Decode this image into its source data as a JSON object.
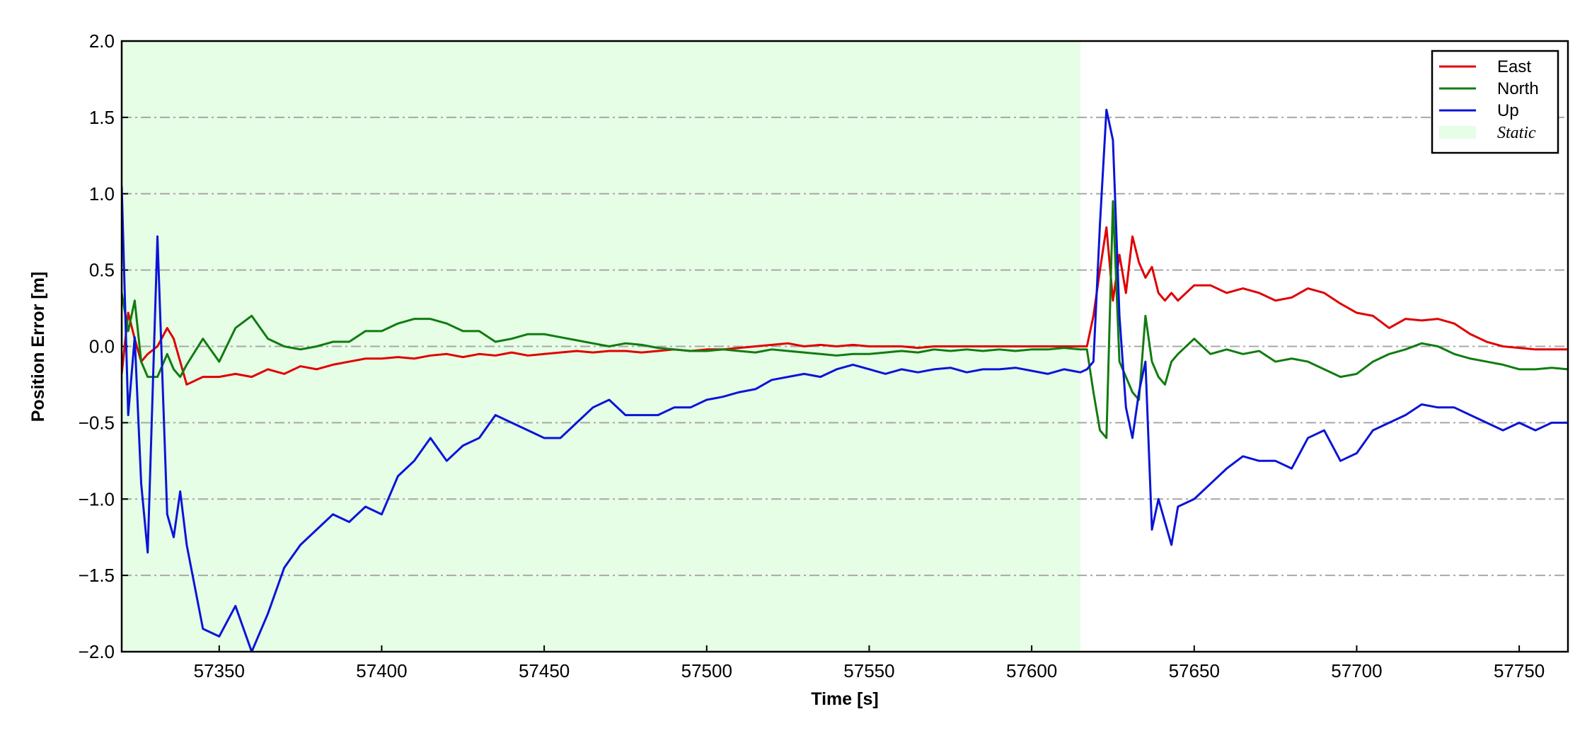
{
  "chart_data": {
    "type": "line",
    "xlabel": "Time [s]",
    "ylabel": "Position Error [m]",
    "xlim": [
      57320,
      57765
    ],
    "ylim": [
      -2.0,
      2.0
    ],
    "xticks": [
      57350,
      57400,
      57450,
      57500,
      57550,
      57600,
      57650,
      57700,
      57750
    ],
    "yticks": [
      {
        "value": -2.0,
        "label": "−2.0"
      },
      {
        "value": -1.5,
        "label": "−1.5"
      },
      {
        "value": -1.0,
        "label": "−1.0"
      },
      {
        "value": -0.5,
        "label": "−0.5"
      },
      {
        "value": 0.0,
        "label": "0.0"
      },
      {
        "value": 0.5,
        "label": "0.5"
      },
      {
        "value": 1.0,
        "label": "1.0"
      },
      {
        "value": 1.5,
        "label": "1.5"
      },
      {
        "value": 2.0,
        "label": "2.0"
      }
    ],
    "grid": true,
    "legend": "upper right",
    "shaded_region": {
      "name": "Static",
      "xrange": [
        57320,
        57615
      ],
      "color": "#e6fde6"
    },
    "x": [
      57320,
      57322,
      57324,
      57326,
      57328,
      57331,
      57334,
      57336,
      57338,
      57340,
      57345,
      57350,
      57355,
      57360,
      57365,
      57370,
      57375,
      57380,
      57385,
      57390,
      57395,
      57400,
      57405,
      57410,
      57415,
      57420,
      57425,
      57430,
      57435,
      57440,
      57445,
      57450,
      57455,
      57460,
      57465,
      57470,
      57475,
      57480,
      57485,
      57490,
      57495,
      57500,
      57505,
      57510,
      57515,
      57520,
      57525,
      57530,
      57535,
      57540,
      57545,
      57550,
      57555,
      57560,
      57565,
      57570,
      57575,
      57580,
      57585,
      57590,
      57595,
      57600,
      57605,
      57610,
      57615,
      57617,
      57619,
      57621,
      57623,
      57625,
      57627,
      57629,
      57631,
      57633,
      57635,
      57637,
      57639,
      57641,
      57643,
      57645,
      57650,
      57655,
      57660,
      57665,
      57670,
      57675,
      57680,
      57685,
      57690,
      57695,
      57700,
      57705,
      57710,
      57715,
      57720,
      57725,
      57730,
      57735,
      57740,
      57745,
      57750,
      57755,
      57760,
      57765
    ],
    "series": [
      {
        "name": "East",
        "color": "#e00000",
        "values": [
          -0.18,
          0.22,
          0.05,
          -0.1,
          -0.05,
          0.0,
          0.12,
          0.05,
          -0.1,
          -0.25,
          -0.2,
          -0.2,
          -0.18,
          -0.2,
          -0.15,
          -0.18,
          -0.13,
          -0.15,
          -0.12,
          -0.1,
          -0.08,
          -0.08,
          -0.07,
          -0.08,
          -0.06,
          -0.05,
          -0.07,
          -0.05,
          -0.06,
          -0.04,
          -0.06,
          -0.05,
          -0.04,
          -0.03,
          -0.04,
          -0.03,
          -0.03,
          -0.04,
          -0.03,
          -0.02,
          -0.03,
          -0.02,
          -0.02,
          -0.01,
          0.0,
          0.01,
          0.02,
          0.0,
          0.01,
          0.0,
          0.01,
          0.0,
          0.0,
          0.0,
          -0.01,
          0.0,
          0.0,
          0.0,
          0.0,
          0.0,
          0.0,
          0.0,
          0.0,
          0.0,
          0.0,
          0.0,
          0.2,
          0.5,
          0.78,
          0.3,
          0.6,
          0.35,
          0.72,
          0.55,
          0.45,
          0.52,
          0.35,
          0.3,
          0.35,
          0.3,
          0.4,
          0.4,
          0.35,
          0.38,
          0.35,
          0.3,
          0.32,
          0.38,
          0.35,
          0.28,
          0.22,
          0.2,
          0.12,
          0.18,
          0.17,
          0.18,
          0.15,
          0.08,
          0.03,
          0.0,
          -0.01,
          -0.02,
          -0.02,
          -0.02
        ]
      },
      {
        "name": "North",
        "color": "#107c10",
        "values": [
          0.35,
          0.1,
          0.3,
          -0.1,
          -0.2,
          -0.2,
          -0.05,
          -0.15,
          -0.2,
          -0.12,
          0.05,
          -0.1,
          0.12,
          0.2,
          0.05,
          0.0,
          -0.02,
          0.0,
          0.03,
          0.03,
          0.1,
          0.1,
          0.15,
          0.18,
          0.18,
          0.15,
          0.1,
          0.1,
          0.03,
          0.05,
          0.08,
          0.08,
          0.06,
          0.04,
          0.02,
          0.0,
          0.02,
          0.01,
          -0.01,
          -0.02,
          -0.03,
          -0.03,
          -0.02,
          -0.03,
          -0.04,
          -0.02,
          -0.03,
          -0.04,
          -0.05,
          -0.06,
          -0.05,
          -0.05,
          -0.04,
          -0.03,
          -0.04,
          -0.02,
          -0.03,
          -0.02,
          -0.03,
          -0.02,
          -0.03,
          -0.02,
          -0.02,
          -0.01,
          -0.02,
          -0.02,
          -0.3,
          -0.55,
          -0.6,
          0.95,
          -0.1,
          -0.2,
          -0.3,
          -0.35,
          0.2,
          -0.1,
          -0.2,
          -0.25,
          -0.1,
          -0.05,
          0.05,
          -0.05,
          -0.02,
          -0.05,
          -0.03,
          -0.1,
          -0.08,
          -0.1,
          -0.15,
          -0.2,
          -0.18,
          -0.1,
          -0.05,
          -0.02,
          0.02,
          0.0,
          -0.05,
          -0.08,
          -0.1,
          -0.12,
          -0.15,
          -0.15,
          -0.14,
          -0.15
        ]
      },
      {
        "name": "Up",
        "color": "#0a14d8",
        "values": [
          1.05,
          -0.45,
          0.06,
          -0.9,
          -1.35,
          0.72,
          -1.1,
          -1.25,
          -0.95,
          -1.3,
          -1.85,
          -1.9,
          -1.7,
          -2.0,
          -1.75,
          -1.45,
          -1.3,
          -1.2,
          -1.1,
          -1.15,
          -1.05,
          -1.1,
          -0.85,
          -0.75,
          -0.6,
          -0.75,
          -0.65,
          -0.6,
          -0.45,
          -0.5,
          -0.55,
          -0.6,
          -0.6,
          -0.5,
          -0.4,
          -0.35,
          -0.45,
          -0.45,
          -0.45,
          -0.4,
          -0.4,
          -0.35,
          -0.33,
          -0.3,
          -0.28,
          -0.22,
          -0.2,
          -0.18,
          -0.2,
          -0.15,
          -0.12,
          -0.15,
          -0.18,
          -0.15,
          -0.17,
          -0.15,
          -0.14,
          -0.17,
          -0.15,
          -0.15,
          -0.14,
          -0.16,
          -0.18,
          -0.15,
          -0.17,
          -0.15,
          -0.1,
          0.8,
          1.55,
          1.35,
          0.2,
          -0.4,
          -0.6,
          -0.3,
          -0.1,
          -1.2,
          -1.0,
          -1.15,
          -1.3,
          -1.05,
          -1.0,
          -0.9,
          -0.8,
          -0.72,
          -0.75,
          -0.75,
          -0.8,
          -0.6,
          -0.55,
          -0.75,
          -0.7,
          -0.55,
          -0.5,
          -0.45,
          -0.38,
          -0.4,
          -0.4,
          -0.45,
          -0.5,
          -0.55,
          -0.5,
          -0.55,
          -0.5,
          -0.5
        ]
      }
    ]
  }
}
